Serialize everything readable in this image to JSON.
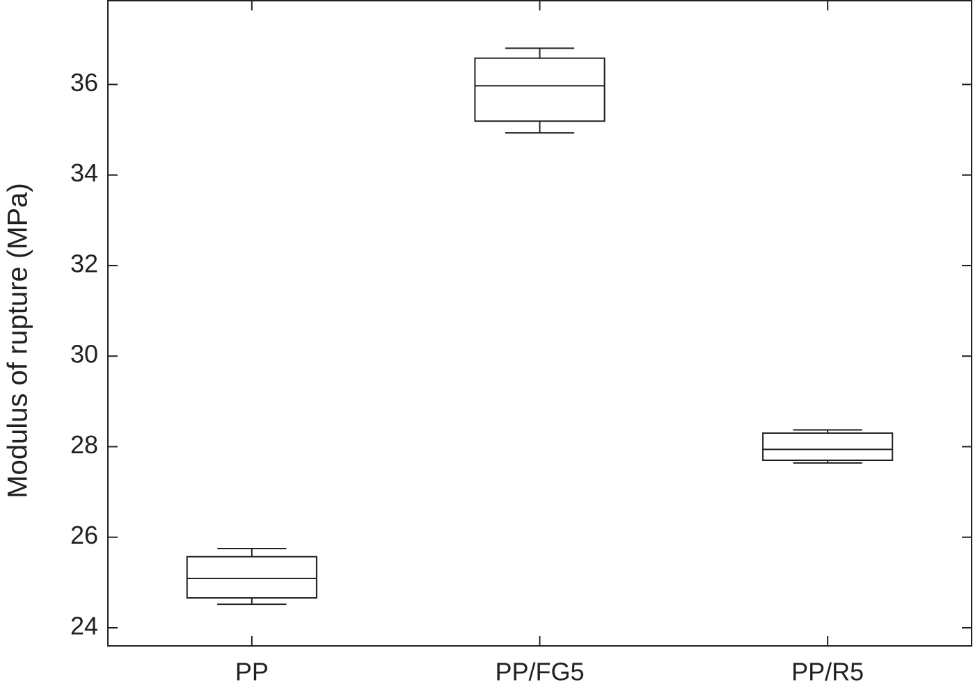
{
  "chart_data": {
    "type": "box",
    "ylabel": "Modulus of rupture (MPa)",
    "categories": [
      "PP",
      "PP/FG5",
      "PP/R5"
    ],
    "min": [
      24.52,
      34.93,
      27.64
    ],
    "q1": [
      24.66,
      35.19,
      27.7
    ],
    "median": [
      25.09,
      35.97,
      27.94
    ],
    "q3": [
      25.57,
      36.58,
      28.3
    ],
    "max": [
      25.75,
      36.8,
      28.37
    ],
    "color": "#231f20",
    "ylim": [
      23.6,
      37.85
    ],
    "yticks": [
      24,
      26,
      28,
      30,
      32,
      34,
      36
    ],
    "grid": false
  }
}
